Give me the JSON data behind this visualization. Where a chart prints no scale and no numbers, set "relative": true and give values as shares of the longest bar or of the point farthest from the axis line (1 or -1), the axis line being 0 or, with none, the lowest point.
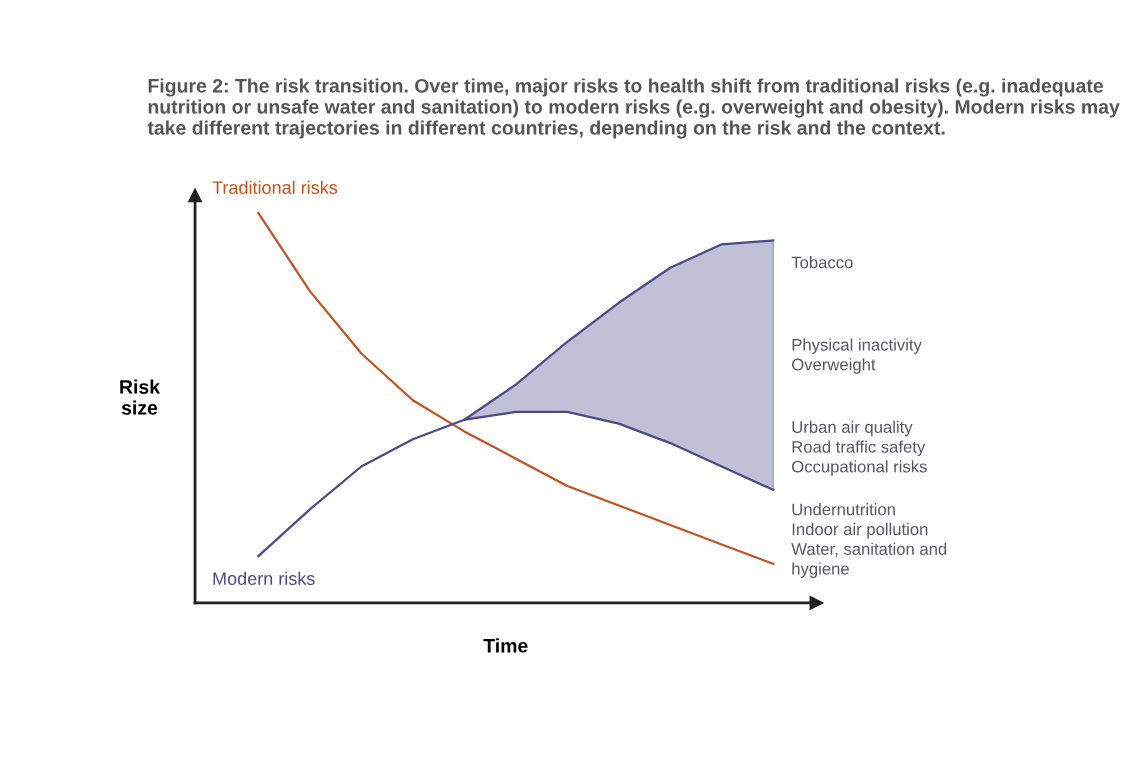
{
  "chart_data": {
    "type": "line",
    "relative": true,
    "title": "Figure 2: The risk transition. Over time, major risks to health shift from traditional risks (e.g. inadequate nutrition or unsafe water and sanitation) to modern risks (e.g. overweight and obesity). Modern risks may take different trajectories in different countries, depending on the risk and the context.",
    "xlabel": "Time",
    "ylabel": "Risk\nsize",
    "categories": [
      null,
      null,
      null,
      null,
      null,
      null,
      null,
      null,
      null,
      null,
      null
    ],
    "series": [
      {
        "name": "Traditional risks",
        "color": "#c8511b",
        "values": [
          1.0,
          0.8,
          0.64,
          0.52,
          0.44,
          0.37,
          0.3,
          0.25,
          0.2,
          0.15,
          0.1
        ]
      },
      {
        "name": "Modern risks",
        "color": "#4a4a8a",
        "values": [
          0.12,
          0.24,
          0.35,
          0.42,
          0.47,
          0.56,
          0.67,
          0.77,
          0.86,
          0.92,
          0.93
        ],
        "lower": [
          null,
          null,
          null,
          null,
          0.47,
          0.49,
          0.49,
          0.46,
          0.41,
          0.35,
          0.29
        ],
        "upper": [
          null,
          null,
          null,
          null,
          0.47,
          0.56,
          0.67,
          0.77,
          0.86,
          0.92,
          0.93
        ]
      },
      {
        "color": "#4a4a8a",
        "values": [
          null,
          null,
          null,
          null,
          0.47,
          0.49,
          0.49,
          0.46,
          0.41,
          0.35,
          0.29
        ]
      }
    ],
    "annotations": [
      "Tobacco",
      "Physical inactivity\nOverweight",
      "Urban air quality\nRoad traffic safety\nOccupational risks",
      "Undernutrition\nIndoor air pollution\nWater, sanitation and\nhygiene"
    ],
    "grid": false,
    "legend": false,
    "marker": "none",
    "line_style": "solid"
  }
}
